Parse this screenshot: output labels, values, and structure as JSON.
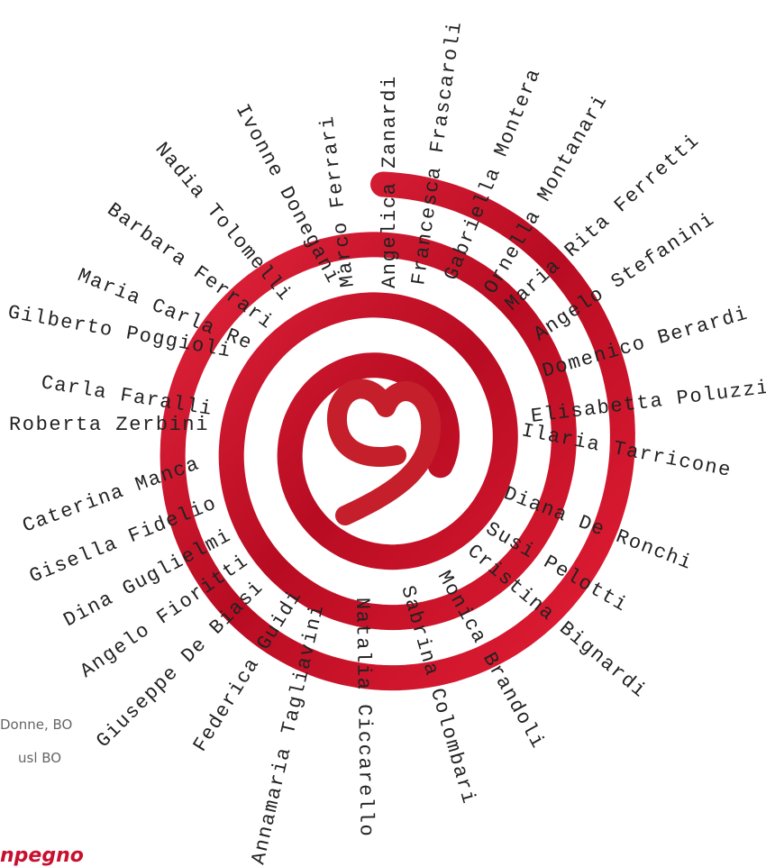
{
  "names": [
    "Ivonne Donegani",
    "Nadia Tolomelli",
    "Barbara Ferrari",
    "Maria Carla Re",
    "Gilberto Poggioli",
    "Carla Faralli",
    "Roberta Zerbini",
    "Caterina Manca",
    "Gisella Fidelio",
    "Dina Guglielmi",
    "Angelo Fioritti",
    "Giuseppe De Biasi",
    "Federica Guidi",
    "Annamaria Tagliavini",
    "Natalia Ciccarello",
    "Sabrina Colombari",
    "Monica Brandoli",
    "Cristina Bignardi",
    "Susi Pelotti",
    "Diana De Ronchi",
    "Ilaria Tarricone",
    "Elisabetta Poluzzi",
    "Domenico Berardi",
    "Angelo Stefanini",
    "Maria Rita Ferretti",
    "Ornella Montanari",
    "Gabriella Montera",
    "Francesca Frascaroli",
    "Angelica Zanardi",
    "Marco Ferrari"
  ],
  "footer": {
    "line1": "Donne, BO",
    "line2": "usl BO",
    "tagline": "npegno"
  }
}
